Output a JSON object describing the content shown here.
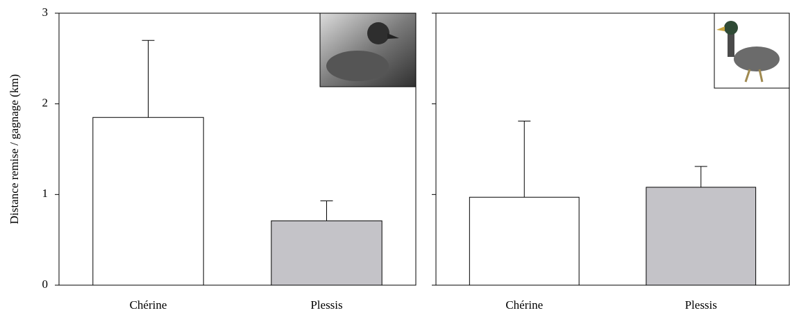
{
  "chart_data": [
    {
      "type": "bar",
      "y_label": "Distance remise / gagnage (km)",
      "categories": [
        "Chérine",
        "Plessis"
      ],
      "values": [
        1.85,
        0.71
      ],
      "errors": [
        0.85,
        0.22
      ],
      "colors": [
        "#ffffff",
        "#c4c3c8"
      ],
      "ylim": [
        0,
        3
      ],
      "yticks": [
        0,
        1,
        2,
        3
      ],
      "tick_labels": true
    },
    {
      "type": "bar",
      "categories": [
        "Chérine",
        "Plessis"
      ],
      "values": [
        0.97,
        1.08
      ],
      "errors": [
        0.84,
        0.23
      ],
      "colors": [
        "#ffffff",
        "#c4c3c8"
      ],
      "ylim": [
        0,
        3
      ],
      "yticks": [
        0,
        1,
        2,
        3
      ],
      "tick_labels": false
    }
  ]
}
